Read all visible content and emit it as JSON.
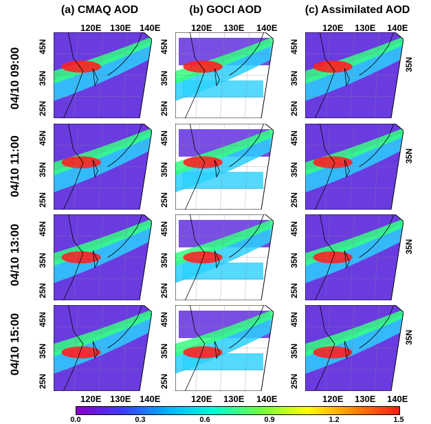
{
  "columns": [
    {
      "title": "(a) CMAQ AOD"
    },
    {
      "title": "(b) GOCI AOD"
    },
    {
      "title": "(c) Assimilated AOD"
    }
  ],
  "rows": [
    {
      "label": "04/10 09:00"
    },
    {
      "label": "04/10 11:00"
    },
    {
      "label": "04/10 13:00"
    },
    {
      "label": "04/10 15:00"
    }
  ],
  "lon_ticks": [
    "120E",
    "130E",
    "140E"
  ],
  "lat_ticks": [
    "45N",
    "35N",
    "25N"
  ],
  "colorbar": {
    "ticks": [
      "0.0",
      "0.3",
      "0.6",
      "0.9",
      "1.2",
      "1.5"
    ],
    "colors": [
      "#8a00c8",
      "#3b3bff",
      "#00b4ff",
      "#00ffd0",
      "#70ff40",
      "#ffff00",
      "#ff8800",
      "#ff1a1a"
    ]
  },
  "map_colors": {
    "low": "#6a3ce0",
    "mid": "#2ad0ff",
    "high": "#35ff80",
    "peak": "#ff2020",
    "missing": "#ffffff"
  }
}
